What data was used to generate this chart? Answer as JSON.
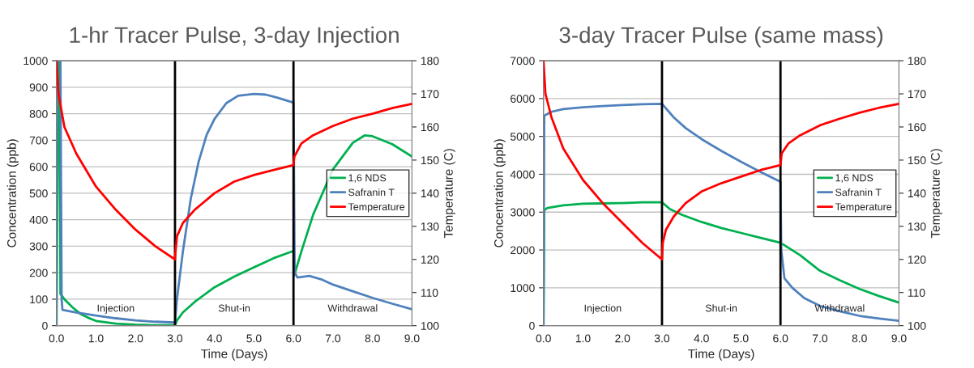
{
  "chart_data": [
    {
      "type": "line",
      "title": "1-hr Tracer Pulse, 3-day Injection",
      "xlabel": "Time (Days)",
      "ylabel": "Concentration (ppb)",
      "y2label": "Temperature (C)",
      "xlim": [
        0,
        9
      ],
      "xticks": [
        {
          "value": 0,
          "label": "0.0"
        },
        {
          "value": 1,
          "label": "1.0"
        },
        {
          "value": 2,
          "label": "2.0"
        },
        {
          "value": 3,
          "label": "3.0"
        },
        {
          "value": 4,
          "label": "4.0"
        },
        {
          "value": 5,
          "label": "5.0"
        },
        {
          "value": 6,
          "label": "6.0"
        },
        {
          "value": 7,
          "label": "7.0"
        },
        {
          "value": 8,
          "label": "8.0"
        },
        {
          "value": 9,
          "label": "9.0"
        }
      ],
      "ylim": [
        0,
        1000
      ],
      "yticks": [
        0,
        100,
        200,
        300,
        400,
        500,
        600,
        700,
        800,
        900,
        1000
      ],
      "y2lim": [
        100,
        180
      ],
      "y2ticks": [
        100,
        110,
        120,
        130,
        140,
        150,
        160,
        170,
        180
      ],
      "grid": "y",
      "legend": "right",
      "marker": "none",
      "line_style": "solid",
      "series": [
        {
          "name": "1,6 NDS",
          "color": "#00b050",
          "x": [
            0,
            0.05,
            0.08,
            0.1,
            0.2,
            0.4,
            0.6,
            0.8,
            1.0,
            1.5,
            2.0,
            2.5,
            3.0,
            3.05,
            3.2,
            3.5,
            4.0,
            4.5,
            5.0,
            5.5,
            6.0,
            6.02,
            6.2,
            6.5,
            7.0,
            7.5,
            7.8,
            8.0,
            8.5,
            9.0
          ],
          "values": [
            0,
            1000,
            1000,
            120,
            100,
            70,
            45,
            30,
            18,
            8,
            4,
            2,
            2,
            20,
            50,
            90,
            145,
            185,
            220,
            255,
            282,
            190,
            280,
            420,
            590,
            690,
            718,
            715,
            685,
            638
          ]
        },
        {
          "name": "Safranin T",
          "color": "#4f81bd",
          "x": [
            0,
            0.01,
            0.1,
            0.13,
            0.15,
            0.5,
            1.0,
            1.5,
            2.0,
            2.5,
            3.0,
            3.05,
            3.2,
            3.4,
            3.6,
            3.8,
            4.0,
            4.3,
            4.6,
            5.0,
            5.3,
            5.6,
            6.0,
            6.03,
            6.1,
            6.4,
            6.7,
            7.0,
            7.5,
            8.0,
            8.5,
            9.0
          ],
          "values": [
            0,
            1000,
            1000,
            100,
            60,
            50,
            38,
            28,
            20,
            15,
            12,
            100,
            280,
            480,
            620,
            720,
            780,
            840,
            868,
            875,
            872,
            860,
            842,
            200,
            182,
            188,
            175,
            155,
            130,
            105,
            83,
            62
          ]
        },
        {
          "name": "Temperature",
          "color": "#ff0000",
          "axis": "y2",
          "x": [
            0,
            0.05,
            0.2,
            0.5,
            1.0,
            1.5,
            2.0,
            2.5,
            3.0,
            3.01,
            3.05,
            3.2,
            3.5,
            4.0,
            4.5,
            5.0,
            5.5,
            6.0,
            6.02,
            6.2,
            6.5,
            7.0,
            7.5,
            8.0,
            8.5,
            9.0
          ],
          "values": [
            180,
            170,
            160,
            152,
            142,
            135,
            129,
            124,
            120,
            122,
            127,
            131,
            135,
            140,
            143.5,
            145.5,
            147,
            148.5,
            151,
            155,
            157.5,
            160.3,
            162.5,
            164,
            165.7,
            167
          ]
        }
      ],
      "ref_lines": [
        {
          "axis": "x",
          "value": 3,
          "color": "#000000"
        },
        {
          "axis": "x",
          "value": 6,
          "color": "#000000"
        }
      ],
      "annotations": [
        "Injection",
        "Shut-in",
        "Withdrawal"
      ]
    },
    {
      "type": "line",
      "title": "3-day Tracer Pulse (same mass)",
      "xlabel": "Time (Days)",
      "ylabel": "Concentration (ppb)",
      "y2label": "Temperature (C)",
      "xlim": [
        0,
        9
      ],
      "xticks": [
        {
          "value": 0,
          "label": "0.0"
        },
        {
          "value": 1,
          "label": "1.0"
        },
        {
          "value": 2,
          "label": "2.0"
        },
        {
          "value": 3,
          "label": "3.0"
        },
        {
          "value": 4,
          "label": "4.0"
        },
        {
          "value": 5,
          "label": "5.0"
        },
        {
          "value": 6,
          "label": "6.0"
        },
        {
          "value": 7,
          "label": "7.0"
        },
        {
          "value": 8,
          "label": "8.0"
        },
        {
          "value": 9,
          "label": "9.0"
        }
      ],
      "ylim": [
        0,
        7000
      ],
      "yticks": [
        0,
        1000,
        2000,
        3000,
        4000,
        5000,
        6000,
        7000
      ],
      "y2lim": [
        100,
        180
      ],
      "y2ticks": [
        100,
        110,
        120,
        130,
        140,
        150,
        160,
        170,
        180
      ],
      "grid": "y",
      "legend": "right",
      "marker": "none",
      "line_style": "solid",
      "series": [
        {
          "name": "1,6 NDS",
          "color": "#00b050",
          "x": [
            0,
            0.02,
            0.1,
            0.5,
            1.0,
            1.5,
            2.0,
            2.5,
            3.0,
            3.2,
            3.5,
            4.0,
            4.5,
            5.0,
            5.5,
            6.0,
            6.5,
            7.0,
            7.5,
            8.0,
            8.5,
            9.0
          ],
          "values": [
            0,
            3050,
            3110,
            3180,
            3220,
            3230,
            3240,
            3260,
            3260,
            3080,
            2930,
            2740,
            2580,
            2450,
            2320,
            2190,
            1860,
            1450,
            1200,
            970,
            780,
            610
          ]
        },
        {
          "name": "Safranin T",
          "color": "#4f81bd",
          "x": [
            0,
            0.02,
            0.2,
            0.5,
            1.0,
            1.5,
            2.0,
            2.5,
            3.0,
            3.3,
            3.6,
            4.0,
            4.5,
            5.0,
            5.5,
            6.0,
            6.02,
            6.1,
            6.3,
            6.6,
            7.0,
            7.5,
            8.0,
            8.5,
            9.0
          ],
          "values": [
            0,
            5550,
            5650,
            5720,
            5770,
            5800,
            5830,
            5850,
            5860,
            5500,
            5220,
            4930,
            4620,
            4330,
            4060,
            3800,
            2000,
            1250,
            1000,
            730,
            520,
            380,
            260,
            190,
            130
          ]
        },
        {
          "name": "Temperature",
          "color": "#ff0000",
          "axis": "y2",
          "x": [
            0,
            0.05,
            0.2,
            0.5,
            1.0,
            1.5,
            2.0,
            2.5,
            3.0,
            3.02,
            3.1,
            3.3,
            3.6,
            4.0,
            4.5,
            5.0,
            5.5,
            6.0,
            6.03,
            6.2,
            6.5,
            7.0,
            7.5,
            8.0,
            8.5,
            9.0
          ],
          "values": [
            180,
            170,
            163,
            153.5,
            144,
            137,
            131,
            125,
            120,
            125,
            129,
            133,
            137,
            140.5,
            143,
            145,
            147,
            148.5,
            152,
            155,
            157.5,
            160.5,
            162.5,
            164.3,
            165.8,
            167
          ]
        }
      ],
      "ref_lines": [
        {
          "axis": "x",
          "value": 3,
          "color": "#000000"
        },
        {
          "axis": "x",
          "value": 6,
          "color": "#000000"
        }
      ],
      "annotations": [
        "Injection",
        "Shut-in",
        "Withdrawal"
      ]
    }
  ]
}
